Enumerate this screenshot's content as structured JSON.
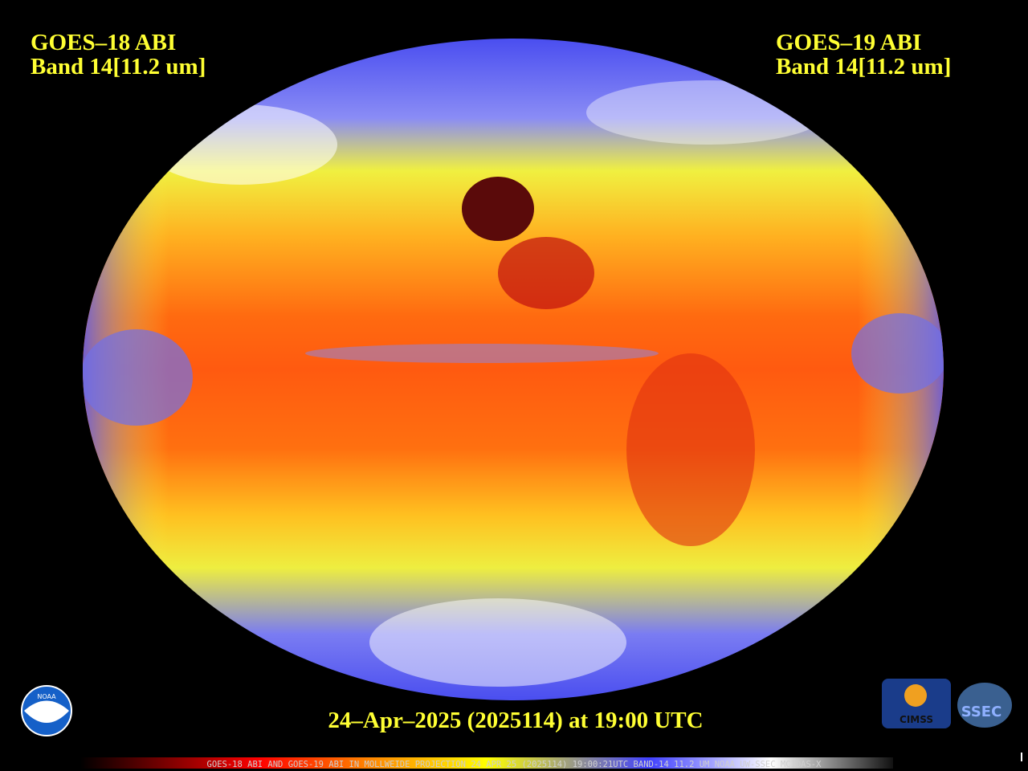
{
  "header": {
    "left": {
      "satellite": "GOES–18 ABI",
      "band": "Band 14[11.2 um]"
    },
    "right": {
      "satellite": "GOES–19 ABI",
      "band": "Band 14[11.2 um]"
    }
  },
  "timestamp": "24–Apr–2025 (2025114) at 19:00 UTC",
  "footer": "GOES-18 ABI AND GOES-19 ABI IN MOLLWEIDE PROJECTION 24 APR 25 (2025114) 19:00:21UTC BAND-14 11.2 UM NOAA UW-SSEC MCIDAS-X",
  "logos": {
    "noaa": "NOAA",
    "cimss": "CIMSS",
    "ssec": "SSEC"
  }
}
